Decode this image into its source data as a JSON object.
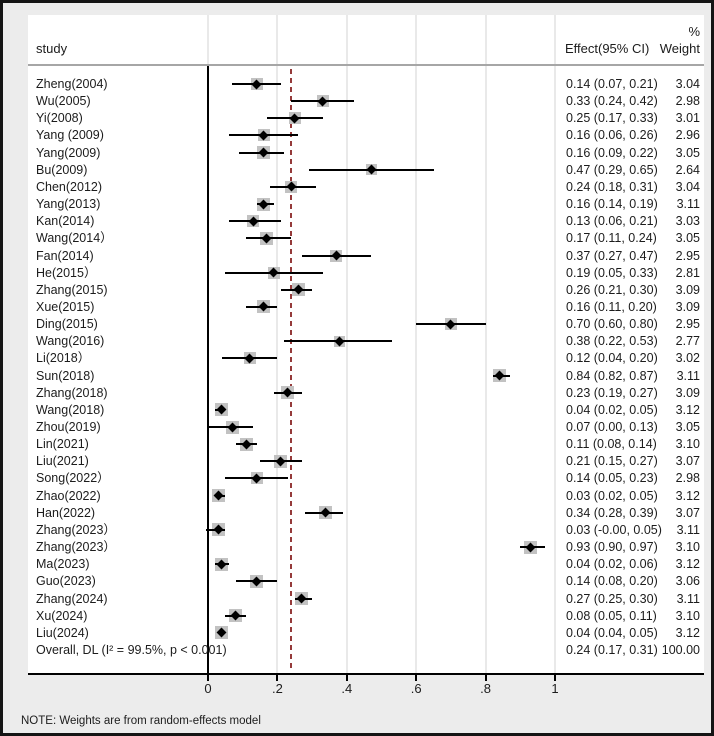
{
  "header": {
    "study_col": "study",
    "effect_col": "Effect(95% CI)",
    "weight_col_top": "%",
    "weight_col": "Weight"
  },
  "note": "NOTE: Weights are from random-effects model",
  "colors": {
    "background": "#ececec",
    "plot_background": "#ffffff",
    "gridline": "#e9e9e9",
    "null_line": "#000000",
    "overall_dashed_line": "#953a3a",
    "weight_box": "#c2c2c2",
    "marker": "#000000",
    "text": "#1c1c1c"
  },
  "chart_data": {
    "type": "forest",
    "title": "",
    "xlabel": "",
    "xlim": [
      -0.05,
      1.1
    ],
    "grid": true,
    "axis": {
      "ticks": [
        {
          "value": 0,
          "label": "0"
        },
        {
          "value": 0.2,
          "label": ".2"
        },
        {
          "value": 0.4,
          "label": ".4"
        },
        {
          "value": 0.6,
          "label": ".6"
        },
        {
          "value": 0.8,
          "label": ".8"
        },
        {
          "value": 1,
          "label": "1"
        }
      ]
    },
    "null_line_value": 0,
    "overall_line_value": 0.24,
    "studies": [
      {
        "name": "Zheng(2004)",
        "effect": 0.14,
        "lo": 0.07,
        "hi": 0.21,
        "weight": 3.04,
        "ci_label": "0.14 (0.07, 0.21)",
        "weight_label": "3.04"
      },
      {
        "name": "Wu(2005)",
        "effect": 0.33,
        "lo": 0.24,
        "hi": 0.42,
        "weight": 2.98,
        "ci_label": "0.33 (0.24, 0.42)",
        "weight_label": "2.98"
      },
      {
        "name": "Yi(2008)",
        "effect": 0.25,
        "lo": 0.17,
        "hi": 0.33,
        "weight": 3.01,
        "ci_label": "0.25 (0.17, 0.33)",
        "weight_label": "3.01"
      },
      {
        "name": "Yang (2009)",
        "effect": 0.16,
        "lo": 0.06,
        "hi": 0.26,
        "weight": 2.96,
        "ci_label": "0.16 (0.06, 0.26)",
        "weight_label": "2.96"
      },
      {
        "name": "Yang(2009)",
        "effect": 0.16,
        "lo": 0.09,
        "hi": 0.22,
        "weight": 3.05,
        "ci_label": "0.16 (0.09, 0.22)",
        "weight_label": "3.05"
      },
      {
        "name": "Bu(2009)",
        "effect": 0.47,
        "lo": 0.29,
        "hi": 0.65,
        "weight": 2.64,
        "ci_label": "0.47 (0.29, 0.65)",
        "weight_label": "2.64"
      },
      {
        "name": "Chen(2012)",
        "effect": 0.24,
        "lo": 0.18,
        "hi": 0.31,
        "weight": 3.04,
        "ci_label": "0.24 (0.18, 0.31)",
        "weight_label": "3.04"
      },
      {
        "name": "Yang(2013)",
        "effect": 0.16,
        "lo": 0.14,
        "hi": 0.19,
        "weight": 3.11,
        "ci_label": "0.16 (0.14, 0.19)",
        "weight_label": "3.11"
      },
      {
        "name": "Kan(2014)",
        "effect": 0.13,
        "lo": 0.06,
        "hi": 0.21,
        "weight": 3.03,
        "ci_label": "0.13 (0.06, 0.21)",
        "weight_label": "3.03"
      },
      {
        "name": "Wang(2014）",
        "effect": 0.17,
        "lo": 0.11,
        "hi": 0.24,
        "weight": 3.05,
        "ci_label": "0.17 (0.11, 0.24)",
        "weight_label": "3.05"
      },
      {
        "name": "Fan(2014)",
        "effect": 0.37,
        "lo": 0.27,
        "hi": 0.47,
        "weight": 2.95,
        "ci_label": "0.37 (0.27, 0.47)",
        "weight_label": "2.95"
      },
      {
        "name": "He(2015）",
        "effect": 0.19,
        "lo": 0.05,
        "hi": 0.33,
        "weight": 2.81,
        "ci_label": "0.19 (0.05, 0.33)",
        "weight_label": "2.81"
      },
      {
        "name": "Zhang(2015)",
        "effect": 0.26,
        "lo": 0.21,
        "hi": 0.3,
        "weight": 3.09,
        "ci_label": "0.26 (0.21, 0.30)",
        "weight_label": "3.09"
      },
      {
        "name": "Xue(2015)",
        "effect": 0.16,
        "lo": 0.11,
        "hi": 0.2,
        "weight": 3.09,
        "ci_label": "0.16 (0.11, 0.20)",
        "weight_label": "3.09"
      },
      {
        "name": "Ding(2015)",
        "effect": 0.7,
        "lo": 0.6,
        "hi": 0.8,
        "weight": 2.95,
        "ci_label": "0.70 (0.60, 0.80)",
        "weight_label": "2.95"
      },
      {
        "name": "Wang(2016)",
        "effect": 0.38,
        "lo": 0.22,
        "hi": 0.53,
        "weight": 2.77,
        "ci_label": "0.38 (0.22, 0.53)",
        "weight_label": "2.77"
      },
      {
        "name": "Li(2018）",
        "effect": 0.12,
        "lo": 0.04,
        "hi": 0.2,
        "weight": 3.02,
        "ci_label": "0.12 (0.04, 0.20)",
        "weight_label": "3.02"
      },
      {
        "name": "Sun(2018)",
        "effect": 0.84,
        "lo": 0.82,
        "hi": 0.87,
        "weight": 3.11,
        "ci_label": "0.84 (0.82, 0.87)",
        "weight_label": "3.11"
      },
      {
        "name": "Zhang(2018)",
        "effect": 0.23,
        "lo": 0.19,
        "hi": 0.27,
        "weight": 3.09,
        "ci_label": "0.23 (0.19, 0.27)",
        "weight_label": "3.09"
      },
      {
        "name": "Wang(2018)",
        "effect": 0.04,
        "lo": 0.02,
        "hi": 0.05,
        "weight": 3.12,
        "ci_label": "0.04 (0.02, 0.05)",
        "weight_label": "3.12"
      },
      {
        "name": "Zhou(2019)",
        "effect": 0.07,
        "lo": 0.0,
        "hi": 0.13,
        "weight": 3.05,
        "ci_label": "0.07 (0.00, 0.13)",
        "weight_label": "3.05"
      },
      {
        "name": "Lin(2021)",
        "effect": 0.11,
        "lo": 0.08,
        "hi": 0.14,
        "weight": 3.1,
        "ci_label": "0.11 (0.08, 0.14)",
        "weight_label": "3.10"
      },
      {
        "name": "Liu(2021)",
        "effect": 0.21,
        "lo": 0.15,
        "hi": 0.27,
        "weight": 3.07,
        "ci_label": "0.21 (0.15, 0.27)",
        "weight_label": "3.07"
      },
      {
        "name": "Song(2022）",
        "effect": 0.14,
        "lo": 0.05,
        "hi": 0.23,
        "weight": 2.98,
        "ci_label": "0.14 (0.05, 0.23)",
        "weight_label": "2.98"
      },
      {
        "name": "Zhao(2022)",
        "effect": 0.03,
        "lo": 0.02,
        "hi": 0.05,
        "weight": 3.12,
        "ci_label": "0.03 (0.02, 0.05)",
        "weight_label": "3.12"
      },
      {
        "name": "Han(2022)",
        "effect": 0.34,
        "lo": 0.28,
        "hi": 0.39,
        "weight": 3.07,
        "ci_label": "0.34 (0.28, 0.39)",
        "weight_label": "3.07"
      },
      {
        "name": "Zhang(2023）",
        "effect": 0.03,
        "lo": -0.005,
        "hi": 0.05,
        "weight": 3.11,
        "ci_label": "0.03 (-0.00, 0.05)",
        "weight_label": "3.11"
      },
      {
        "name": "Zhang(2023）",
        "effect": 0.93,
        "lo": 0.9,
        "hi": 0.97,
        "weight": 3.1,
        "ci_label": "0.93 (0.90, 0.97)",
        "weight_label": "3.10"
      },
      {
        "name": "Ma(2023)",
        "effect": 0.04,
        "lo": 0.02,
        "hi": 0.06,
        "weight": 3.12,
        "ci_label": "0.04 (0.02, 0.06)",
        "weight_label": "3.12"
      },
      {
        "name": "Guo(2023)",
        "effect": 0.14,
        "lo": 0.08,
        "hi": 0.2,
        "weight": 3.06,
        "ci_label": "0.14 (0.08, 0.20)",
        "weight_label": "3.06"
      },
      {
        "name": "Zhang(2024)",
        "effect": 0.27,
        "lo": 0.25,
        "hi": 0.3,
        "weight": 3.11,
        "ci_label": "0.27 (0.25, 0.30)",
        "weight_label": "3.11"
      },
      {
        "name": "Xu(2024)",
        "effect": 0.08,
        "lo": 0.05,
        "hi": 0.11,
        "weight": 3.1,
        "ci_label": "0.08 (0.05, 0.11)",
        "weight_label": "3.10"
      },
      {
        "name": "Liu(2024)",
        "effect": 0.04,
        "lo": 0.04,
        "hi": 0.05,
        "weight": 3.12,
        "ci_label": "0.04 (0.04, 0.05)",
        "weight_label": "3.12"
      }
    ],
    "overall": {
      "name": "Overall, DL (I² = 99.5%, p < 0.001)",
      "effect": 0.24,
      "lo": 0.17,
      "hi": 0.31,
      "ci_label": "0.24 (0.17, 0.31)",
      "weight_label": "100.00"
    }
  }
}
